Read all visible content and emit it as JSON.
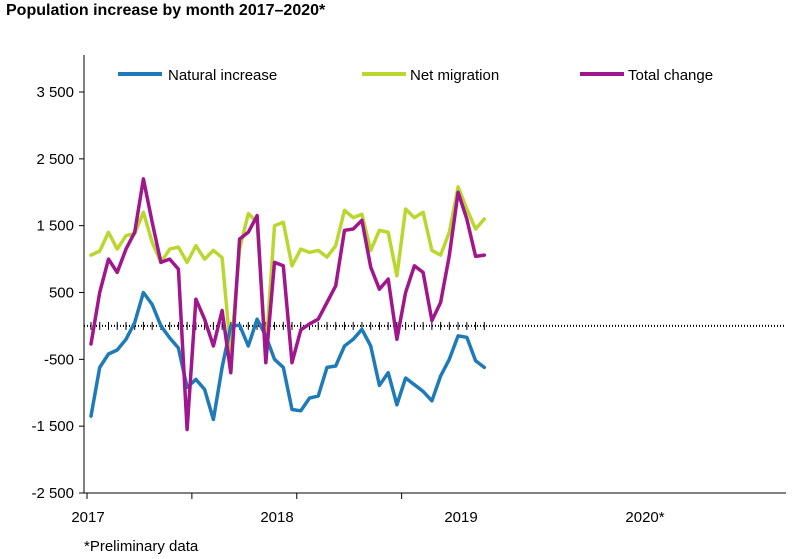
{
  "chart_data": {
    "type": "line",
    "title": "Population increase by month 2017–2020*",
    "footnote": "*Preliminary data",
    "xlabel": "",
    "ylabel": "",
    "ylim": [
      -2500,
      4000
    ],
    "y_ticks": [
      3500,
      2500,
      1500,
      500,
      -500,
      -1500,
      -2500
    ],
    "y_tick_labels": [
      "3 500",
      "2 500",
      "1 500",
      "500",
      "-500",
      "-1 500",
      "-2 500"
    ],
    "x_tick_labels": [
      "2017",
      "2018",
      "2019",
      "2020*"
    ],
    "x_start": "2017-01",
    "months": 46,
    "grid": false,
    "zero_line": "dotted",
    "legend_position": "top",
    "series": [
      {
        "name": "Natural increase",
        "color": "#1f7ab8",
        "values": [
          -1350,
          -620,
          -420,
          -360,
          -200,
          50,
          500,
          320,
          0,
          -180,
          -330,
          -920,
          -800,
          -950,
          -1400,
          -620,
          0,
          10,
          -300,
          100,
          -150,
          -500,
          -620,
          -1250,
          -1270,
          -1080,
          -1050,
          -620,
          -600,
          -300,
          -200,
          -50,
          -300,
          -890,
          -700,
          -1180,
          -780,
          -880,
          -980,
          -1120,
          -750,
          -500,
          -150,
          -170,
          -520,
          -620
        ]
      },
      {
        "name": "Net migration",
        "color": "#bcd630",
        "values": [
          1060,
          1120,
          1400,
          1150,
          1350,
          1380,
          1700,
          1250,
          950,
          1150,
          1180,
          950,
          1200,
          1000,
          1130,
          1020,
          -400,
          1150,
          1680,
          1550,
          -400,
          1500,
          1550,
          900,
          1150,
          1100,
          1130,
          1030,
          1200,
          1730,
          1620,
          1670,
          1130,
          1430,
          1400,
          750,
          1750,
          1620,
          1700,
          1130,
          1060,
          1400,
          2080,
          1750,
          1450,
          1600
        ]
      },
      {
        "name": "Total change",
        "color": "#a0168c",
        "values": [
          -270,
          500,
          1000,
          800,
          1150,
          1400,
          2200,
          1550,
          950,
          1000,
          850,
          -1550,
          400,
          100,
          -300,
          230,
          -700,
          1300,
          1400,
          1650,
          -550,
          950,
          900,
          -550,
          -60,
          30,
          100,
          350,
          600,
          1430,
          1450,
          1580,
          880,
          550,
          700,
          -200,
          500,
          900,
          800,
          80,
          350,
          1050,
          2000,
          1600,
          1040,
          1060
        ]
      }
    ]
  }
}
